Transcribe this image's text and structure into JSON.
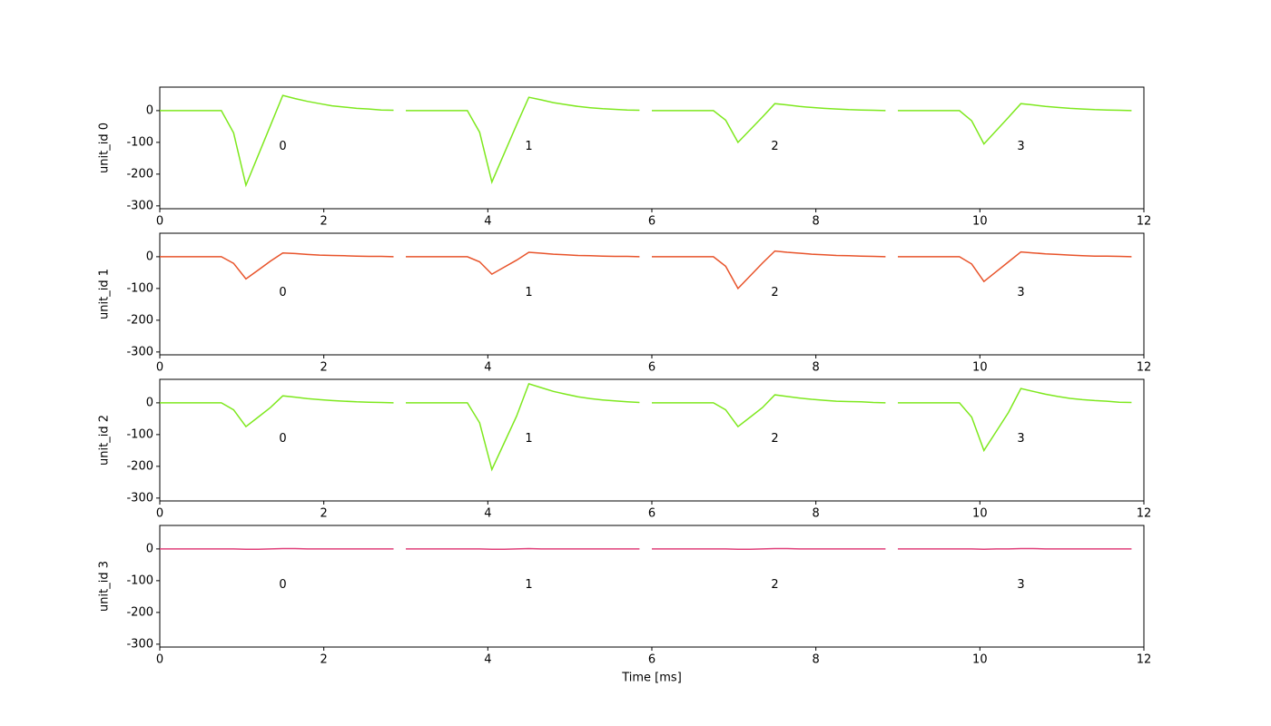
{
  "chart_data": [
    {
      "type": "line",
      "ylabel": "unit_id 0",
      "xlim": [
        0,
        12
      ],
      "ylim": [
        -309,
        74
      ],
      "xticks": [
        0,
        2,
        4,
        6,
        8,
        10,
        12
      ],
      "yticks": [
        0,
        -100,
        -200,
        -300
      ],
      "channel_labels": [
        "0",
        "1",
        "2",
        "3"
      ],
      "color": "#7ee81e",
      "series": [
        {
          "x": [
            0,
            0.15,
            0.3,
            0.45,
            0.6,
            0.75,
            0.9,
            1.05,
            1.2,
            1.35,
            1.5,
            1.65,
            1.8,
            1.95,
            2.1,
            2.25,
            2.4,
            2.55,
            2.7,
            2.85
          ],
          "values": [
            0,
            0,
            0,
            0,
            0,
            0,
            -70,
            -235,
            -141,
            -47,
            48,
            38,
            29,
            22,
            15,
            11,
            7,
            5,
            2,
            1
          ]
        },
        {
          "x": [
            3,
            3.15,
            3.3,
            3.45,
            3.6,
            3.75,
            3.9,
            4.05,
            4.2,
            4.35,
            4.5,
            4.65,
            4.8,
            4.95,
            5.1,
            5.25,
            5.4,
            5.55,
            5.7,
            5.85
          ],
          "values": [
            0,
            0,
            0,
            0,
            0,
            0,
            -68,
            -225,
            -135,
            -45,
            42,
            34,
            25,
            19,
            13,
            9,
            6,
            4,
            2,
            1
          ]
        },
        {
          "x": [
            6,
            6.15,
            6.3,
            6.45,
            6.6,
            6.75,
            6.9,
            7.05,
            7.2,
            7.35,
            7.5,
            7.65,
            7.8,
            7.95,
            8.1,
            8.25,
            8.4,
            8.55,
            8.7,
            8.85
          ],
          "values": [
            0,
            0,
            0,
            0,
            0,
            0,
            -30,
            -100,
            -60,
            -20,
            22,
            18,
            13,
            10,
            7,
            5,
            3,
            2,
            1,
            0
          ]
        },
        {
          "x": [
            9,
            9.15,
            9.3,
            9.45,
            9.6,
            9.75,
            9.9,
            10.05,
            10.2,
            10.35,
            10.5,
            10.65,
            10.8,
            10.95,
            11.1,
            11.25,
            11.4,
            11.55,
            11.7,
            11.85
          ],
          "values": [
            0,
            0,
            0,
            0,
            0,
            0,
            -32,
            -105,
            -63,
            -21,
            22,
            18,
            13,
            10,
            7,
            5,
            3,
            2,
            1,
            0
          ]
        }
      ]
    },
    {
      "type": "line",
      "ylabel": "unit_id 1",
      "xlim": [
        0,
        12
      ],
      "ylim": [
        -309,
        74
      ],
      "xticks": [
        0,
        2,
        4,
        6,
        8,
        10,
        12
      ],
      "yticks": [
        0,
        -100,
        -200,
        -300
      ],
      "channel_labels": [
        "0",
        "1",
        "2",
        "3"
      ],
      "color": "#e8532a",
      "series": [
        {
          "x": [
            0,
            0.15,
            0.3,
            0.45,
            0.6,
            0.75,
            0.9,
            1.05,
            1.2,
            1.35,
            1.5,
            1.65,
            1.8,
            1.95,
            2.1,
            2.25,
            2.4,
            2.55,
            2.7,
            2.85
          ],
          "values": [
            0,
            0,
            0,
            0,
            0,
            0,
            -21,
            -70,
            -42,
            -14,
            12,
            10,
            7,
            5,
            4,
            3,
            2,
            1,
            1,
            0
          ]
        },
        {
          "x": [
            3,
            3.15,
            3.3,
            3.45,
            3.6,
            3.75,
            3.9,
            4.05,
            4.2,
            4.35,
            4.5,
            4.65,
            4.8,
            4.95,
            5.1,
            5.25,
            5.4,
            5.55,
            5.7,
            5.85
          ],
          "values": [
            0,
            0,
            0,
            0,
            0,
            0,
            -16,
            -55,
            -33,
            -11,
            14,
            11,
            8,
            6,
            4,
            3,
            2,
            1,
            1,
            0
          ]
        },
        {
          "x": [
            6,
            6.15,
            6.3,
            6.45,
            6.6,
            6.75,
            6.9,
            7.05,
            7.2,
            7.35,
            7.5,
            7.65,
            7.8,
            7.95,
            8.1,
            8.25,
            8.4,
            8.55,
            8.7,
            8.85
          ],
          "values": [
            0,
            0,
            0,
            0,
            0,
            0,
            -30,
            -100,
            -60,
            -20,
            18,
            14,
            11,
            8,
            6,
            4,
            3,
            2,
            1,
            0
          ]
        },
        {
          "x": [
            9,
            9.15,
            9.3,
            9.45,
            9.6,
            9.75,
            9.9,
            10.05,
            10.2,
            10.35,
            10.5,
            10.65,
            10.8,
            10.95,
            11.1,
            11.25,
            11.4,
            11.55,
            11.7,
            11.85
          ],
          "values": [
            0,
            0,
            0,
            0,
            0,
            0,
            -23,
            -78,
            -47,
            -16,
            15,
            12,
            9,
            7,
            5,
            3,
            2,
            2,
            1,
            0
          ]
        }
      ]
    },
    {
      "type": "line",
      "ylabel": "unit_id 2",
      "xlim": [
        0,
        12
      ],
      "ylim": [
        -309,
        74
      ],
      "xticks": [
        0,
        2,
        4,
        6,
        8,
        10,
        12
      ],
      "yticks": [
        0,
        -100,
        -200,
        -300
      ],
      "channel_labels": [
        "0",
        "1",
        "2",
        "3"
      ],
      "color": "#7ee81e",
      "series": [
        {
          "x": [
            0,
            0.15,
            0.3,
            0.45,
            0.6,
            0.75,
            0.9,
            1.05,
            1.2,
            1.35,
            1.5,
            1.65,
            1.8,
            1.95,
            2.1,
            2.25,
            2.4,
            2.55,
            2.7,
            2.85
          ],
          "values": [
            0,
            0,
            0,
            0,
            0,
            0,
            -22,
            -75,
            -45,
            -15,
            22,
            18,
            13,
            10,
            7,
            5,
            3,
            2,
            1,
            0
          ]
        },
        {
          "x": [
            3,
            3.15,
            3.3,
            3.45,
            3.6,
            3.75,
            3.9,
            4.05,
            4.2,
            4.35,
            4.5,
            4.65,
            4.8,
            4.95,
            5.1,
            5.25,
            5.4,
            5.55,
            5.7,
            5.85
          ],
          "values": [
            0,
            0,
            0,
            0,
            0,
            0,
            -63,
            -210,
            -126,
            -42,
            60,
            48,
            36,
            27,
            19,
            13,
            9,
            6,
            3,
            1
          ]
        },
        {
          "x": [
            6,
            6.15,
            6.3,
            6.45,
            6.6,
            6.75,
            6.9,
            7.05,
            7.2,
            7.35,
            7.5,
            7.65,
            7.8,
            7.95,
            8.1,
            8.25,
            8.4,
            8.55,
            8.7,
            8.85
          ],
          "values": [
            0,
            0,
            0,
            0,
            0,
            0,
            -22,
            -75,
            -45,
            -15,
            25,
            20,
            15,
            11,
            8,
            5,
            4,
            3,
            1,
            0
          ]
        },
        {
          "x": [
            9,
            9.15,
            9.3,
            9.45,
            9.6,
            9.75,
            9.9,
            10.05,
            10.2,
            10.35,
            10.5,
            10.65,
            10.8,
            10.95,
            11.1,
            11.25,
            11.4,
            11.55,
            11.7,
            11.85
          ],
          "values": [
            0,
            0,
            0,
            0,
            0,
            0,
            -45,
            -150,
            -90,
            -30,
            45,
            36,
            27,
            20,
            14,
            10,
            7,
            5,
            2,
            1
          ]
        }
      ]
    },
    {
      "type": "line",
      "ylabel": "unit_id 3",
      "xlabel": "Time [ms]",
      "xlim": [
        0,
        12
      ],
      "ylim": [
        -309,
        74
      ],
      "xticks": [
        0,
        2,
        4,
        6,
        8,
        10,
        12
      ],
      "yticks": [
        0,
        -100,
        -200,
        -300
      ],
      "channel_labels": [
        "0",
        "1",
        "2",
        "3"
      ],
      "color": "#e0407a",
      "series": [
        {
          "x": [
            0,
            0.15,
            0.3,
            0.45,
            0.6,
            0.75,
            0.9,
            1.05,
            1.2,
            1.35,
            1.5,
            1.65,
            1.8,
            1.95,
            2.1,
            2.25,
            2.4,
            2.55,
            2.7,
            2.85
          ],
          "values": [
            0,
            0,
            0,
            0,
            0,
            0,
            0,
            -1,
            -1,
            0,
            1,
            1,
            0,
            0,
            0,
            0,
            0,
            0,
            0,
            0
          ]
        },
        {
          "x": [
            3,
            3.15,
            3.3,
            3.45,
            3.6,
            3.75,
            3.9,
            4.05,
            4.2,
            4.35,
            4.5,
            4.65,
            4.8,
            4.95,
            5.1,
            5.25,
            5.4,
            5.55,
            5.7,
            5.85
          ],
          "values": [
            0,
            0,
            0,
            0,
            0,
            0,
            0,
            -1,
            -1,
            0,
            1,
            0,
            0,
            0,
            0,
            0,
            0,
            0,
            0,
            0
          ]
        },
        {
          "x": [
            6,
            6.15,
            6.3,
            6.45,
            6.6,
            6.75,
            6.9,
            7.05,
            7.2,
            7.35,
            7.5,
            7.65,
            7.8,
            7.95,
            8.1,
            8.25,
            8.4,
            8.55,
            8.7,
            8.85
          ],
          "values": [
            0,
            0,
            0,
            0,
            0,
            0,
            0,
            -1,
            -1,
            0,
            1,
            1,
            0,
            0,
            0,
            0,
            0,
            0,
            0,
            0
          ]
        },
        {
          "x": [
            9,
            9.15,
            9.3,
            9.45,
            9.6,
            9.75,
            9.9,
            10.05,
            10.2,
            10.35,
            10.5,
            10.65,
            10.8,
            10.95,
            11.1,
            11.25,
            11.4,
            11.55,
            11.7,
            11.85
          ],
          "values": [
            0,
            0,
            0,
            0,
            0,
            0,
            0,
            -1,
            0,
            0,
            1,
            1,
            0,
            0,
            0,
            0,
            0,
            0,
            0,
            0
          ]
        }
      ]
    }
  ]
}
